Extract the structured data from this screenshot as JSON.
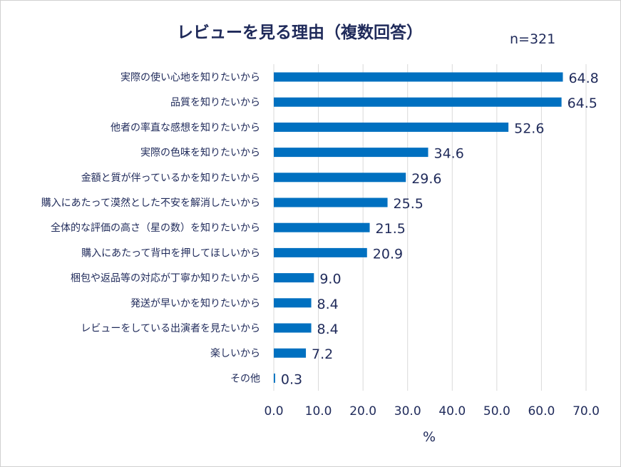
{
  "chart_data": {
    "type": "bar",
    "orientation": "horizontal",
    "title": "レビューを見る理由（複数回答）",
    "sample_size": "n=321",
    "xlabel": "%",
    "xlim": [
      0,
      70
    ],
    "x_ticks": [
      "0.0",
      "10.0",
      "20.0",
      "30.0",
      "40.0",
      "50.0",
      "60.0",
      "70.0"
    ],
    "grid": "vertical",
    "bar_color": "#0070c0",
    "categories": [
      "実際の使い心地を知りたいから",
      "品質を知りたいから",
      "他者の率直な感想を知りたいから",
      "実際の色味を知りたいから",
      "金額と質が伴っているかを知りたいから",
      "購入にあたって漠然とした不安を解消したいから",
      "全体的な評価の高さ（星の数）を知りたいから",
      "購入にあたって背中を押してほしいから",
      "梱包や返品等の対応が丁寧か知りたいから",
      "発送が早いかを知りたいから",
      "レビューをしている出演者を見たいから",
      "楽しいから",
      "その他"
    ],
    "values": [
      64.8,
      64.5,
      52.6,
      34.6,
      29.6,
      25.5,
      21.5,
      20.9,
      9.0,
      8.4,
      8.4,
      7.2,
      0.3
    ],
    "data_labels": [
      "64.8",
      "64.5",
      "52.6",
      "34.6",
      "29.6",
      "25.5",
      "21.5",
      "20.9",
      "9.0",
      "8.4",
      "8.4",
      "7.2",
      "0.3"
    ]
  }
}
